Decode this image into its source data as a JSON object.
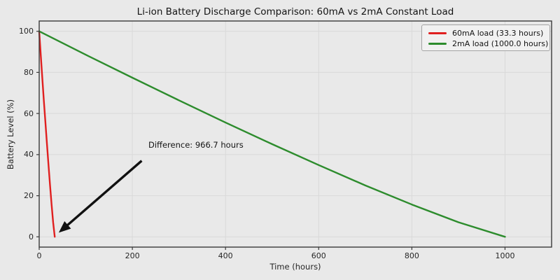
{
  "chart_data": {
    "type": "line",
    "title": "Li-ion Battery Discharge Comparison: 60mA vs 2mA Constant Load",
    "xlabel": "Time (hours)",
    "ylabel": "Battery Level (%)",
    "xlim": [
      0,
      1100
    ],
    "ylim": [
      -5,
      105
    ],
    "xticks": [
      0,
      200,
      400,
      600,
      800,
      1000
    ],
    "yticks": [
      0,
      20,
      40,
      60,
      80,
      100
    ],
    "grid": true,
    "legend": {
      "position": "upper right",
      "entries": [
        "60mA load (33.3 hours)",
        "2mA load (1000.0 hours)"
      ]
    },
    "series": [
      {
        "name": "60mA load (33.3 hours)",
        "color": "#e02020",
        "discharge_hours": 33.3,
        "x": [
          0,
          3.33,
          6.66,
          9.99,
          13.32,
          16.65,
          19.98,
          23.31,
          26.64,
          29.97,
          33.3
        ],
        "y": [
          100,
          88.6,
          77.4,
          66.4,
          55.6,
          45.1,
          34.9,
          25.0,
          15.7,
          7.1,
          0
        ]
      },
      {
        "name": "2mA load (1000.0 hours)",
        "color": "#2d8c2d",
        "discharge_hours": 1000.0,
        "x": [
          0,
          100,
          200,
          300,
          400,
          500,
          600,
          700,
          800,
          900,
          1000
        ],
        "y": [
          100,
          88.6,
          77.4,
          66.4,
          55.6,
          45.1,
          34.9,
          25.0,
          15.7,
          7.1,
          0
        ]
      }
    ],
    "annotation": {
      "text": "Difference: 966.7 hours",
      "text_xy": [
        234,
        47
      ],
      "arrow_from_xy": [
        220,
        37
      ],
      "arrow_to_xy": [
        42,
        2
      ]
    },
    "style": {
      "figure_bg": "#e9e9e9",
      "grid_color": "#d9d9d9",
      "spine_color": "#3a3a3a",
      "tick_color": "#3a3a3a",
      "text_color": "#141414",
      "arrow_color": "#111111",
      "legend_bg": "#f1f1f1",
      "legend_border": "#a3a3a3"
    }
  }
}
